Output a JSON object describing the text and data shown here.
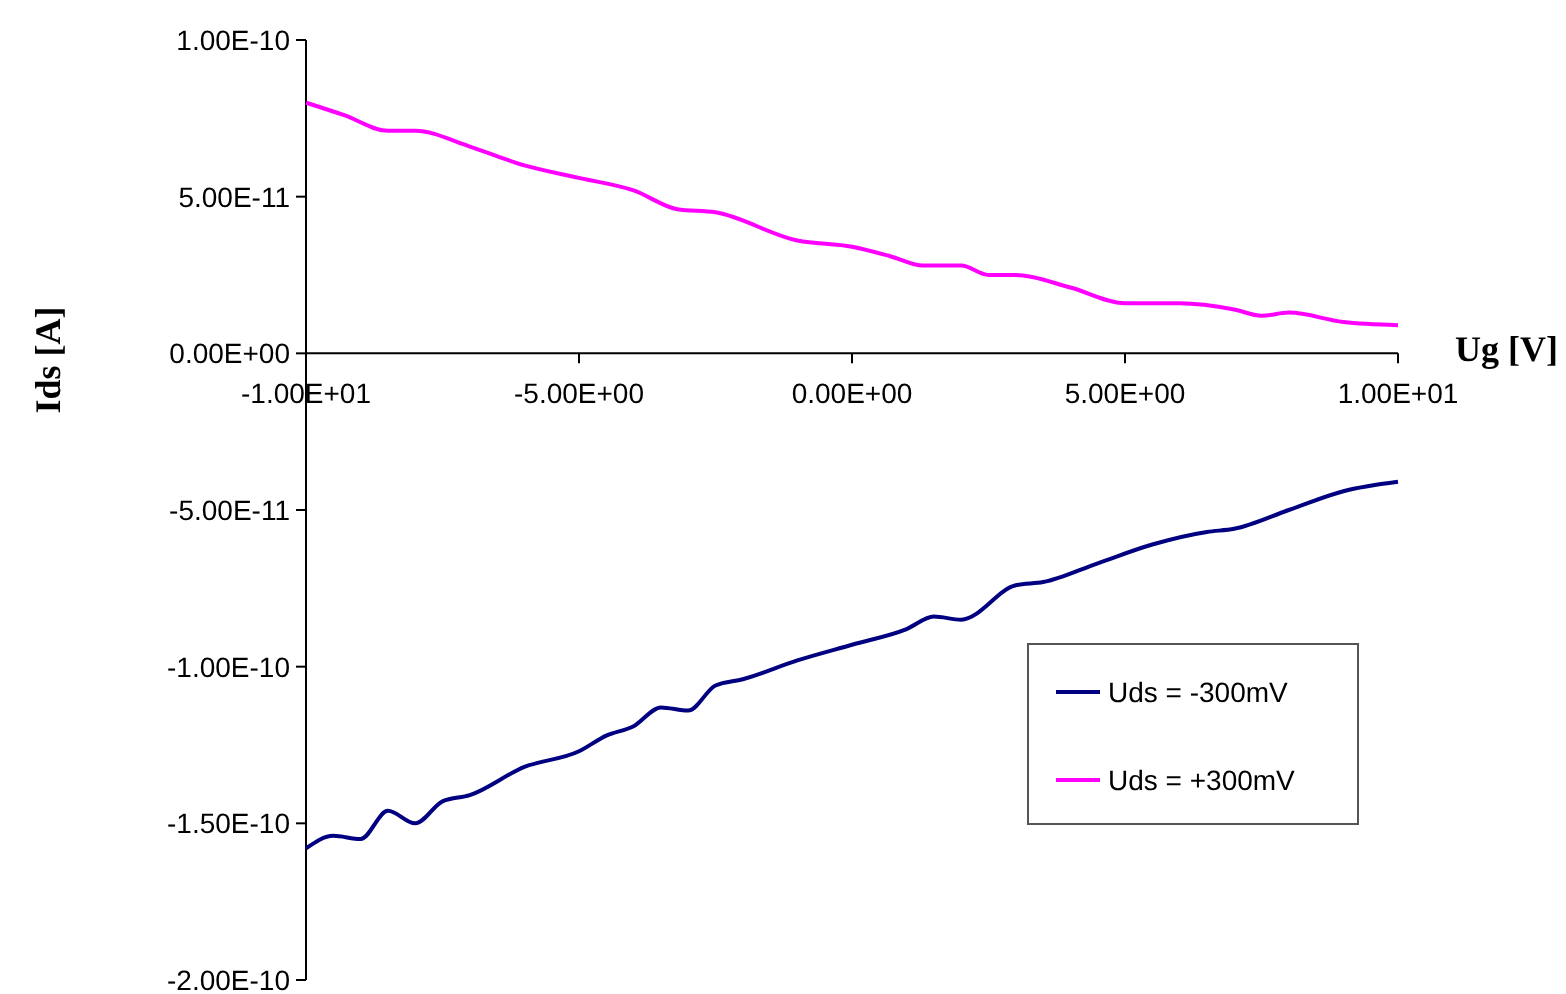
{
  "chart_data": {
    "type": "line",
    "xlabel": "Ug [V]",
    "ylabel": "Ids [A]",
    "xlim": [
      -10,
      10
    ],
    "ylim": [
      -2e-10,
      1e-10
    ],
    "xticks": [
      {
        "value": -10,
        "label": "-1.00E+01"
      },
      {
        "value": -5,
        "label": "-5.00E+00"
      },
      {
        "value": 0,
        "label": "0.00E+00"
      },
      {
        "value": 5,
        "label": "5.00E+00"
      },
      {
        "value": 10,
        "label": "1.00E+01"
      }
    ],
    "yticks": [
      {
        "value": -2e-10,
        "label": "-2.00E-10"
      },
      {
        "value": -1.5e-10,
        "label": "-1.50E-10"
      },
      {
        "value": -1e-10,
        "label": "-1.00E-10"
      },
      {
        "value": -5e-11,
        "label": "-5.00E-11"
      },
      {
        "value": 0,
        "label": "0.00E+00"
      },
      {
        "value": 5e-11,
        "label": "5.00E-11"
      },
      {
        "value": 1e-10,
        "label": "1.00E-10"
      }
    ],
    "grid": false,
    "legend": "bottom right",
    "marker": "none",
    "line_style": "solid",
    "x": [
      -10,
      -9.5,
      -9,
      -8.5,
      -8,
      -7.5,
      -7,
      -6,
      -5,
      -4.5,
      -4,
      -3.5,
      -3,
      -2.5,
      -2,
      -1,
      0,
      1,
      1.5,
      2,
      3,
      3.5,
      4.5,
      5.5,
      6.5,
      7,
      8,
      9,
      10
    ],
    "series": [
      {
        "name": "Uds = -300mV",
        "color": "#000080",
        "values": [
          -1.58e-10,
          -1.54e-10,
          -1.55e-10,
          -1.46e-10,
          -1.5e-10,
          -1.43e-10,
          -1.41e-10,
          -1.32e-10,
          -1.27e-10,
          -1.22e-10,
          -1.19e-10,
          -1.13e-10,
          -1.14e-10,
          -1.06e-10,
          -1.04e-10,
          -9.8e-11,
          -9.3e-11,
          -8.8e-11,
          -8.4e-11,
          -8.5e-11,
          -7.4e-11,
          -7.3e-11,
          -6.7e-11,
          -6.1e-11,
          -5.7e-11,
          -5.6e-11,
          -5e-11,
          -4.4e-11,
          -4.1e-11
        ]
      },
      {
        "name": "Uds = +300mV",
        "color": "#ff00ff",
        "x": [
          -10,
          -9.3,
          -8.5,
          -8,
          -7,
          -6,
          -5,
          -4,
          -3.2,
          -2.5,
          -1,
          0,
          0.7,
          1.3,
          2,
          2.5,
          3,
          4,
          5,
          6,
          7,
          7.5,
          8,
          9,
          10
        ],
        "values": [
          8e-11,
          7.6e-11,
          7.1e-11,
          7.1e-11,
          6.6e-11,
          6e-11,
          5.6e-11,
          5.2e-11,
          4.6e-11,
          4.5e-11,
          3.6e-11,
          3.4e-11,
          3.1e-11,
          2.8e-11,
          2.8e-11,
          2.5e-11,
          2.5e-11,
          2.1e-11,
          1.6e-11,
          1.6e-11,
          1.4e-11,
          1.2e-11,
          1.3e-11,
          1e-11,
          9e-12
        ]
      }
    ]
  }
}
